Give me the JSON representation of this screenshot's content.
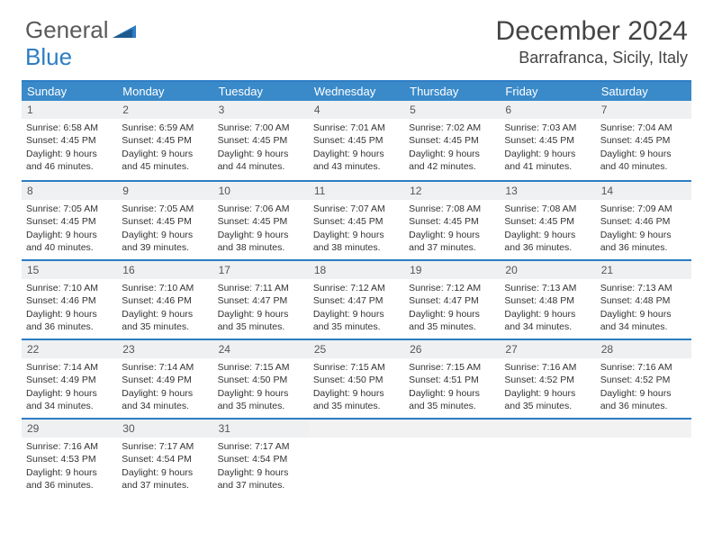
{
  "logo": {
    "text1": "General",
    "text2": "Blue"
  },
  "month_title": "December 2024",
  "location": "Barrafranca, Sicily, Italy",
  "colors": {
    "header_bg": "#3a8ac9",
    "border": "#2d7dc4",
    "daynum_bg": "#eef0f1",
    "text": "#333333"
  },
  "day_names": [
    "Sunday",
    "Monday",
    "Tuesday",
    "Wednesday",
    "Thursday",
    "Friday",
    "Saturday"
  ],
  "weeks": [
    [
      {
        "n": "1",
        "sr": "Sunrise: 6:58 AM",
        "ss": "Sunset: 4:45 PM",
        "d1": "Daylight: 9 hours",
        "d2": "and 46 minutes."
      },
      {
        "n": "2",
        "sr": "Sunrise: 6:59 AM",
        "ss": "Sunset: 4:45 PM",
        "d1": "Daylight: 9 hours",
        "d2": "and 45 minutes."
      },
      {
        "n": "3",
        "sr": "Sunrise: 7:00 AM",
        "ss": "Sunset: 4:45 PM",
        "d1": "Daylight: 9 hours",
        "d2": "and 44 minutes."
      },
      {
        "n": "4",
        "sr": "Sunrise: 7:01 AM",
        "ss": "Sunset: 4:45 PM",
        "d1": "Daylight: 9 hours",
        "d2": "and 43 minutes."
      },
      {
        "n": "5",
        "sr": "Sunrise: 7:02 AM",
        "ss": "Sunset: 4:45 PM",
        "d1": "Daylight: 9 hours",
        "d2": "and 42 minutes."
      },
      {
        "n": "6",
        "sr": "Sunrise: 7:03 AM",
        "ss": "Sunset: 4:45 PM",
        "d1": "Daylight: 9 hours",
        "d2": "and 41 minutes."
      },
      {
        "n": "7",
        "sr": "Sunrise: 7:04 AM",
        "ss": "Sunset: 4:45 PM",
        "d1": "Daylight: 9 hours",
        "d2": "and 40 minutes."
      }
    ],
    [
      {
        "n": "8",
        "sr": "Sunrise: 7:05 AM",
        "ss": "Sunset: 4:45 PM",
        "d1": "Daylight: 9 hours",
        "d2": "and 40 minutes."
      },
      {
        "n": "9",
        "sr": "Sunrise: 7:05 AM",
        "ss": "Sunset: 4:45 PM",
        "d1": "Daylight: 9 hours",
        "d2": "and 39 minutes."
      },
      {
        "n": "10",
        "sr": "Sunrise: 7:06 AM",
        "ss": "Sunset: 4:45 PM",
        "d1": "Daylight: 9 hours",
        "d2": "and 38 minutes."
      },
      {
        "n": "11",
        "sr": "Sunrise: 7:07 AM",
        "ss": "Sunset: 4:45 PM",
        "d1": "Daylight: 9 hours",
        "d2": "and 38 minutes."
      },
      {
        "n": "12",
        "sr": "Sunrise: 7:08 AM",
        "ss": "Sunset: 4:45 PM",
        "d1": "Daylight: 9 hours",
        "d2": "and 37 minutes."
      },
      {
        "n": "13",
        "sr": "Sunrise: 7:08 AM",
        "ss": "Sunset: 4:45 PM",
        "d1": "Daylight: 9 hours",
        "d2": "and 36 minutes."
      },
      {
        "n": "14",
        "sr": "Sunrise: 7:09 AM",
        "ss": "Sunset: 4:46 PM",
        "d1": "Daylight: 9 hours",
        "d2": "and 36 minutes."
      }
    ],
    [
      {
        "n": "15",
        "sr": "Sunrise: 7:10 AM",
        "ss": "Sunset: 4:46 PM",
        "d1": "Daylight: 9 hours",
        "d2": "and 36 minutes."
      },
      {
        "n": "16",
        "sr": "Sunrise: 7:10 AM",
        "ss": "Sunset: 4:46 PM",
        "d1": "Daylight: 9 hours",
        "d2": "and 35 minutes."
      },
      {
        "n": "17",
        "sr": "Sunrise: 7:11 AM",
        "ss": "Sunset: 4:47 PM",
        "d1": "Daylight: 9 hours",
        "d2": "and 35 minutes."
      },
      {
        "n": "18",
        "sr": "Sunrise: 7:12 AM",
        "ss": "Sunset: 4:47 PM",
        "d1": "Daylight: 9 hours",
        "d2": "and 35 minutes."
      },
      {
        "n": "19",
        "sr": "Sunrise: 7:12 AM",
        "ss": "Sunset: 4:47 PM",
        "d1": "Daylight: 9 hours",
        "d2": "and 35 minutes."
      },
      {
        "n": "20",
        "sr": "Sunrise: 7:13 AM",
        "ss": "Sunset: 4:48 PM",
        "d1": "Daylight: 9 hours",
        "d2": "and 34 minutes."
      },
      {
        "n": "21",
        "sr": "Sunrise: 7:13 AM",
        "ss": "Sunset: 4:48 PM",
        "d1": "Daylight: 9 hours",
        "d2": "and 34 minutes."
      }
    ],
    [
      {
        "n": "22",
        "sr": "Sunrise: 7:14 AM",
        "ss": "Sunset: 4:49 PM",
        "d1": "Daylight: 9 hours",
        "d2": "and 34 minutes."
      },
      {
        "n": "23",
        "sr": "Sunrise: 7:14 AM",
        "ss": "Sunset: 4:49 PM",
        "d1": "Daylight: 9 hours",
        "d2": "and 34 minutes."
      },
      {
        "n": "24",
        "sr": "Sunrise: 7:15 AM",
        "ss": "Sunset: 4:50 PM",
        "d1": "Daylight: 9 hours",
        "d2": "and 35 minutes."
      },
      {
        "n": "25",
        "sr": "Sunrise: 7:15 AM",
        "ss": "Sunset: 4:50 PM",
        "d1": "Daylight: 9 hours",
        "d2": "and 35 minutes."
      },
      {
        "n": "26",
        "sr": "Sunrise: 7:15 AM",
        "ss": "Sunset: 4:51 PM",
        "d1": "Daylight: 9 hours",
        "d2": "and 35 minutes."
      },
      {
        "n": "27",
        "sr": "Sunrise: 7:16 AM",
        "ss": "Sunset: 4:52 PM",
        "d1": "Daylight: 9 hours",
        "d2": "and 35 minutes."
      },
      {
        "n": "28",
        "sr": "Sunrise: 7:16 AM",
        "ss": "Sunset: 4:52 PM",
        "d1": "Daylight: 9 hours",
        "d2": "and 36 minutes."
      }
    ],
    [
      {
        "n": "29",
        "sr": "Sunrise: 7:16 AM",
        "ss": "Sunset: 4:53 PM",
        "d1": "Daylight: 9 hours",
        "d2": "and 36 minutes."
      },
      {
        "n": "30",
        "sr": "Sunrise: 7:17 AM",
        "ss": "Sunset: 4:54 PM",
        "d1": "Daylight: 9 hours",
        "d2": "and 37 minutes."
      },
      {
        "n": "31",
        "sr": "Sunrise: 7:17 AM",
        "ss": "Sunset: 4:54 PM",
        "d1": "Daylight: 9 hours",
        "d2": "and 37 minutes."
      },
      {
        "n": "",
        "sr": "",
        "ss": "",
        "d1": "",
        "d2": ""
      },
      {
        "n": "",
        "sr": "",
        "ss": "",
        "d1": "",
        "d2": ""
      },
      {
        "n": "",
        "sr": "",
        "ss": "",
        "d1": "",
        "d2": ""
      },
      {
        "n": "",
        "sr": "",
        "ss": "",
        "d1": "",
        "d2": ""
      }
    ]
  ]
}
